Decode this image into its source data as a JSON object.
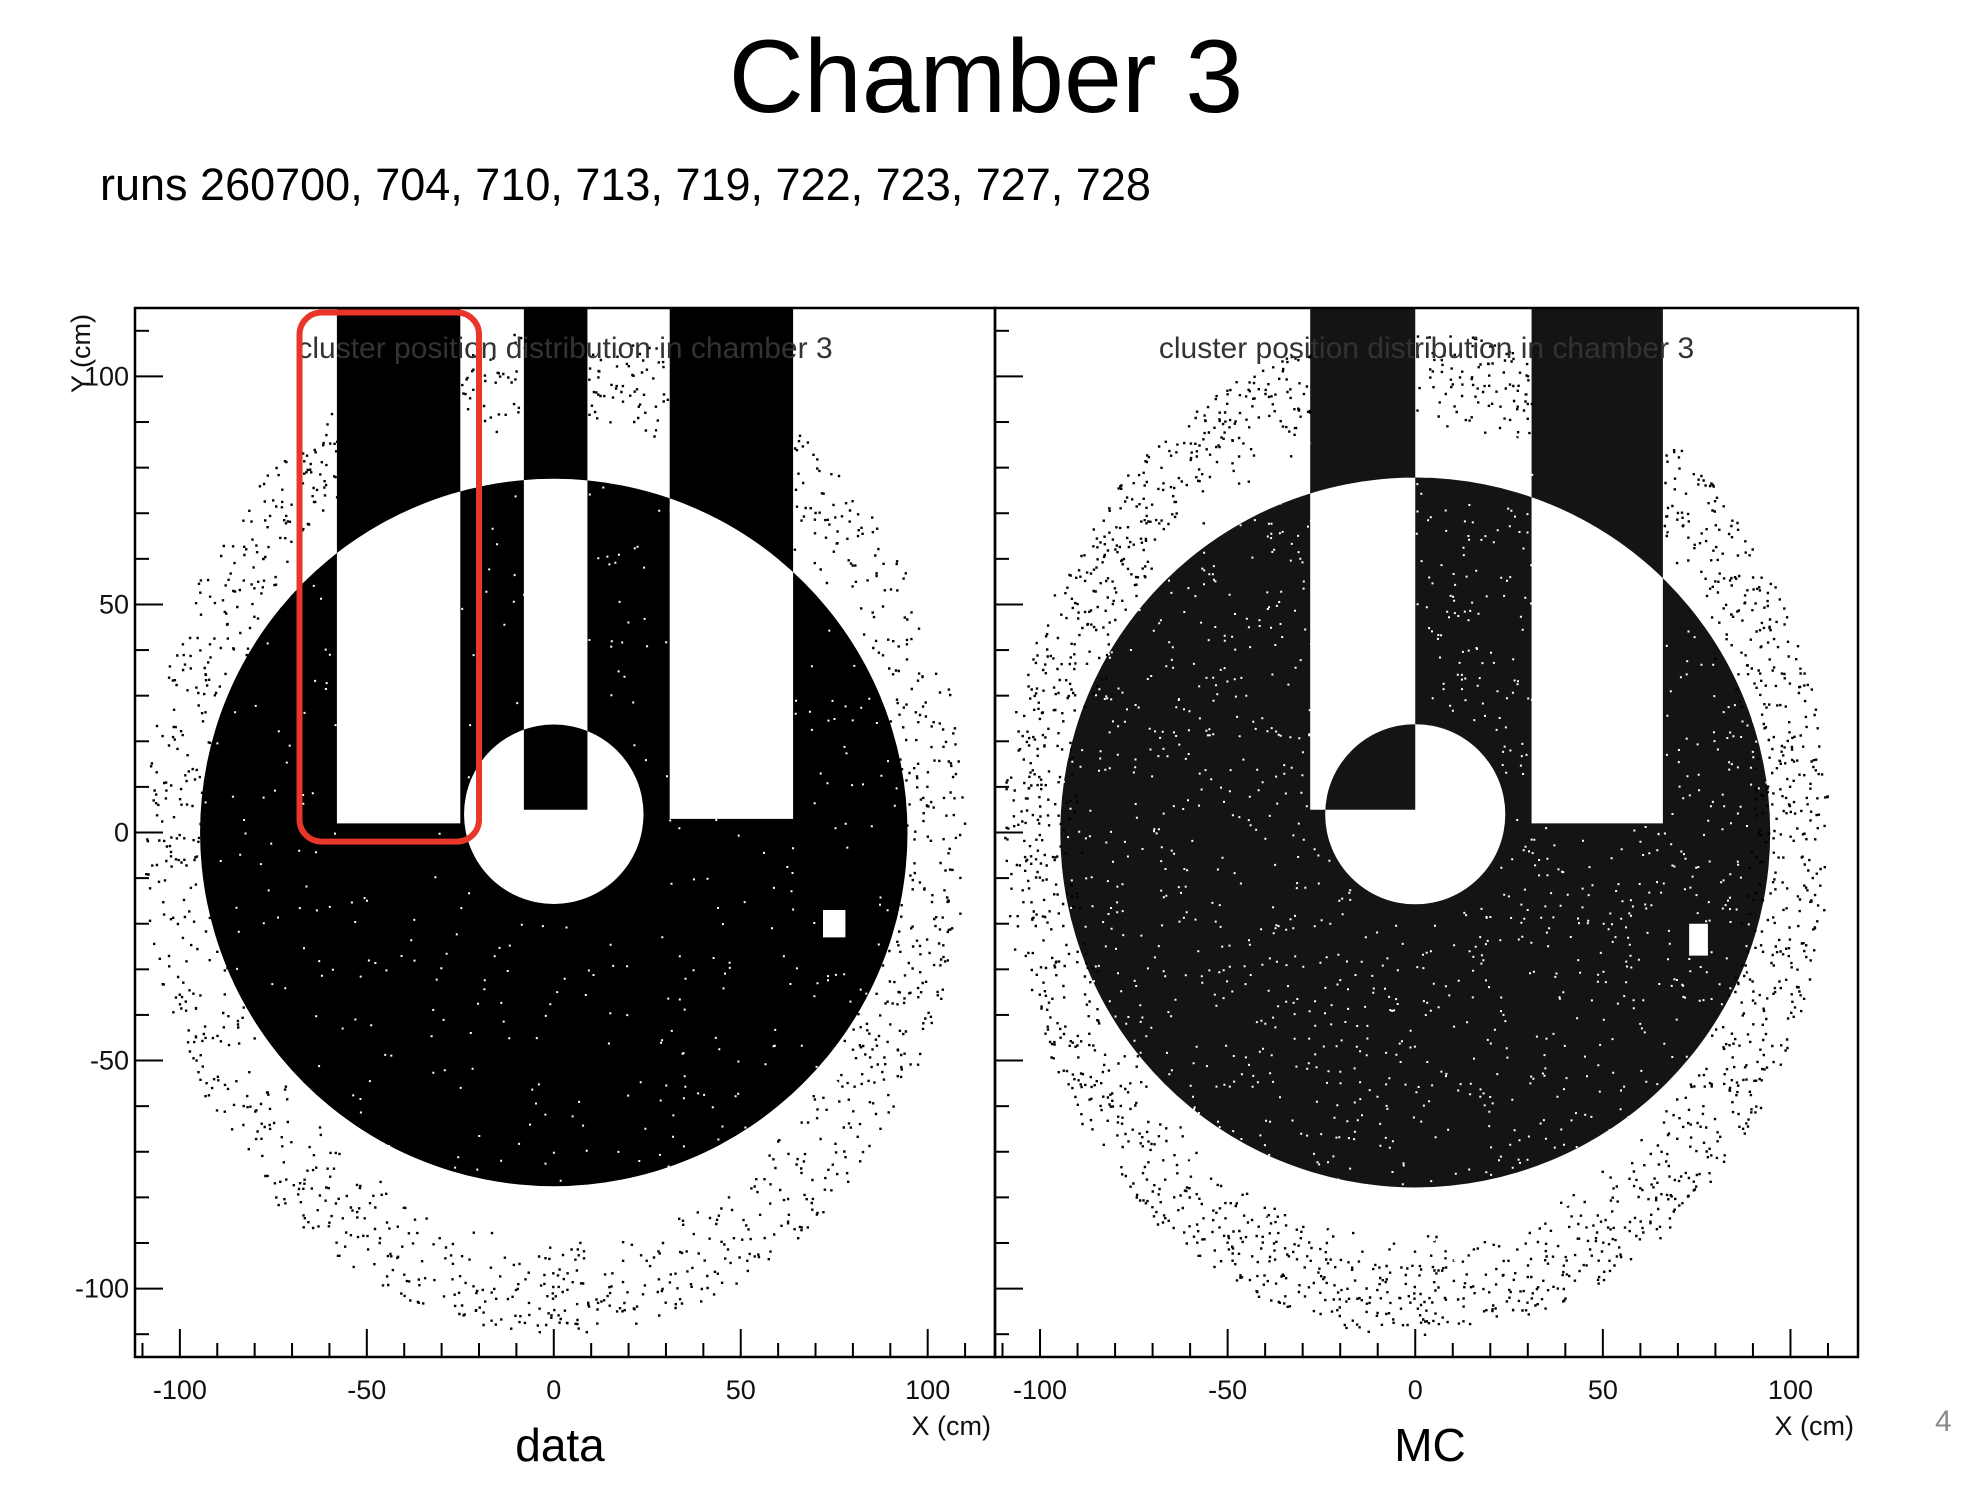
{
  "slide": {
    "title": "Chamber 3",
    "subtitle": "runs 260700, 704, 710, 713, 719, 722, 723, 727, 728",
    "page_number": "4",
    "captions": [
      "data",
      "MC"
    ]
  },
  "chart_data": [
    {
      "type": "scatter",
      "panel": "data",
      "title": "cluster position distribution in chamber 3",
      "xlabel": "X (cm)",
      "ylabel": "Y (cm)",
      "xlim": [
        -112,
        118
      ],
      "ylim": [
        -115,
        115
      ],
      "xticks": [
        -100,
        -50,
        0,
        50,
        100
      ],
      "yticks": [
        -100,
        -50,
        0,
        50,
        100
      ],
      "grid": false,
      "marker_color": "#000000",
      "annotation": {
        "shape": "rounded-rectangle",
        "color": "#e8362a",
        "x_range": [
          -68,
          -20
        ],
        "y_range": [
          -2,
          114
        ]
      },
      "shape_description": {
        "outer_radius": 110,
        "center_hole": {
          "x": 0,
          "y": 4,
          "radius": 24
        },
        "empty_regions": [
          {
            "x": [
              -58,
              -25
            ],
            "y": [
              2,
              115
            ]
          },
          {
            "x": [
              -8,
              9
            ],
            "y": [
              5,
              115
            ]
          },
          {
            "x": [
              31,
              64
            ],
            "y": [
              3,
              115
            ]
          }
        ],
        "dead_spot": {
          "x": [
            72,
            78
          ],
          "y": [
            -23,
            -17
          ]
        }
      }
    },
    {
      "type": "scatter",
      "panel": "MC",
      "title": "cluster position distribution in chamber 3",
      "xlabel": "X (cm)",
      "ylabel": "",
      "xlim": [
        -112,
        118
      ],
      "ylim": [
        -115,
        115
      ],
      "xticks": [
        -100,
        -50,
        0,
        50,
        100
      ],
      "yticks": [
        -100,
        -50,
        0,
        50,
        100
      ],
      "grid": false,
      "marker_color": "#000000",
      "shape_description": {
        "outer_radius": 110,
        "center_hole": {
          "x": 0,
          "y": 4,
          "radius": 24
        },
        "empty_regions": [
          {
            "x": [
              -28,
              0
            ],
            "y": [
              5,
              115
            ]
          },
          {
            "x": [
              31,
              66
            ],
            "y": [
              2,
              115
            ]
          }
        ],
        "dead_spot": {
          "x": [
            73,
            78
          ],
          "y": [
            -27,
            -20
          ]
        }
      }
    }
  ]
}
